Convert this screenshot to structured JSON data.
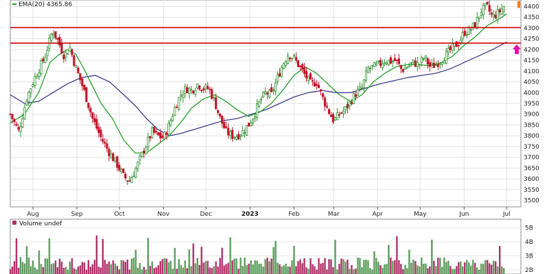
{
  "chart_data": [
    {
      "type": "candlestick",
      "legend": {
        "ema_label": "EMA(20)",
        "ema_value": "4365.86"
      },
      "y_ticks": [
        3500,
        3550,
        3600,
        3650,
        3700,
        3750,
        3800,
        3850,
        3900,
        3950,
        4000,
        4050,
        4100,
        4150,
        4200,
        4250,
        4300,
        4350,
        4400
      ],
      "ylim": [
        3470,
        4430
      ],
      "x_months": [
        {
          "label": "Aug",
          "day": 16
        },
        {
          "label": "Sep",
          "day": 47
        },
        {
          "label": "Oct",
          "day": 77
        },
        {
          "label": "Nov",
          "day": 108
        },
        {
          "label": "Dec",
          "day": 138
        },
        {
          "label": "2023",
          "day": 169,
          "bold": true
        },
        {
          "label": "Feb",
          "day": 200
        },
        {
          "label": "Mar",
          "day": 228
        },
        {
          "label": "Apr",
          "day": 259
        },
        {
          "label": "May",
          "day": 289
        },
        {
          "label": "Jun",
          "day": 320
        },
        {
          "label": "Jul",
          "day": 350
        }
      ],
      "series": [
        {
          "kind": "close",
          "points": [
            [
              0,
              3900
            ],
            [
              6,
              3820
            ],
            [
              12,
              3985
            ],
            [
              18,
              4080
            ],
            [
              24,
              4160
            ],
            [
              30,
              4290
            ],
            [
              34,
              4235
            ],
            [
              38,
              4170
            ],
            [
              42,
              4210
            ],
            [
              46,
              4120
            ],
            [
              52,
              4010
            ],
            [
              58,
              3880
            ],
            [
              64,
              3790
            ],
            [
              70,
              3720
            ],
            [
              76,
              3660
            ],
            [
              80,
              3610
            ],
            [
              84,
              3590
            ],
            [
              88,
              3640
            ],
            [
              92,
              3700
            ],
            [
              96,
              3760
            ],
            [
              100,
              3820
            ],
            [
              104,
              3800
            ],
            [
              108,
              3790
            ],
            [
              112,
              3850
            ],
            [
              116,
              3930
            ],
            [
              120,
              3990
            ],
            [
              124,
              4020
            ],
            [
              128,
              4010
            ],
            [
              132,
              4040
            ],
            [
              136,
              4020
            ],
            [
              140,
              4020
            ],
            [
              144,
              3960
            ],
            [
              148,
              3880
            ],
            [
              152,
              3820
            ],
            [
              156,
              3800
            ],
            [
              160,
              3800
            ],
            [
              164,
              3820
            ],
            [
              168,
              3850
            ],
            [
              172,
              3900
            ],
            [
              176,
              3960
            ],
            [
              180,
              4000
            ],
            [
              184,
              3990
            ],
            [
              188,
              4060
            ],
            [
              192,
              4130
            ],
            [
              196,
              4180
            ],
            [
              200,
              4160
            ],
            [
              204,
              4120
            ],
            [
              208,
              4080
            ],
            [
              212,
              4040
            ],
            [
              216,
              4050
            ],
            [
              220,
              3980
            ],
            [
              224,
              3920
            ],
            [
              228,
              3870
            ],
            [
              232,
              3900
            ],
            [
              236,
              3920
            ],
            [
              240,
              3960
            ],
            [
              244,
              4000
            ],
            [
              248,
              4020
            ],
            [
              252,
              4110
            ],
            [
              256,
              4120
            ],
            [
              260,
              4130
            ],
            [
              264,
              4150
            ],
            [
              268,
              4145
            ],
            [
              272,
              4150
            ],
            [
              276,
              4105
            ],
            [
              280,
              4120
            ],
            [
              284,
              4140
            ],
            [
              288,
              4130
            ],
            [
              292,
              4165
            ],
            [
              296,
              4120
            ],
            [
              300,
              4130
            ],
            [
              304,
              4155
            ],
            [
              308,
              4180
            ],
            [
              312,
              4210
            ],
            [
              316,
              4230
            ],
            [
              320,
              4280
            ],
            [
              324,
              4290
            ],
            [
              328,
              4320
            ],
            [
              332,
              4380
            ],
            [
              336,
              4400
            ],
            [
              340,
              4350
            ],
            [
              344,
              4370
            ],
            [
              348,
              4400
            ]
          ]
        },
        {
          "kind": "ema20",
          "name": "EMA(20)",
          "color": "#22a022",
          "points": [
            [
              0,
              3860
            ],
            [
              10,
              3900
            ],
            [
              20,
              4000
            ],
            [
              28,
              4140
            ],
            [
              34,
              4175
            ],
            [
              40,
              4200
            ],
            [
              46,
              4180
            ],
            [
              52,
              4110
            ],
            [
              58,
              4030
            ],
            [
              64,
              3950
            ],
            [
              72,
              3880
            ],
            [
              80,
              3780
            ],
            [
              88,
              3720
            ],
            [
              96,
              3720
            ],
            [
              104,
              3760
            ],
            [
              112,
              3800
            ],
            [
              120,
              3860
            ],
            [
              128,
              3930
            ],
            [
              136,
              3970
            ],
            [
              144,
              3990
            ],
            [
              152,
              3960
            ],
            [
              160,
              3920
            ],
            [
              168,
              3890
            ],
            [
              176,
              3910
            ],
            [
              184,
              3950
            ],
            [
              192,
              4010
            ],
            [
              200,
              4080
            ],
            [
              208,
              4120
            ],
            [
              216,
              4090
            ],
            [
              224,
              4040
            ],
            [
              232,
              3990
            ],
            [
              240,
              3960
            ],
            [
              248,
              3990
            ],
            [
              256,
              4050
            ],
            [
              264,
              4090
            ],
            [
              272,
              4120
            ],
            [
              280,
              4130
            ],
            [
              288,
              4130
            ],
            [
              296,
              4125
            ],
            [
              304,
              4140
            ],
            [
              312,
              4170
            ],
            [
              320,
              4220
            ],
            [
              328,
              4260
            ],
            [
              336,
              4310
            ],
            [
              344,
              4340
            ],
            [
              350,
              4365
            ]
          ]
        },
        {
          "kind": "ema50",
          "color": "#3b3b8f",
          "points": [
            [
              0,
              3990
            ],
            [
              10,
              3950
            ],
            [
              20,
              3960
            ],
            [
              30,
              4000
            ],
            [
              40,
              4040
            ],
            [
              50,
              4070
            ],
            [
              60,
              4080
            ],
            [
              70,
              4050
            ],
            [
              80,
              3990
            ],
            [
              88,
              3940
            ],
            [
              96,
              3880
            ],
            [
              104,
              3830
            ],
            [
              112,
              3800
            ],
            [
              120,
              3810
            ],
            [
              130,
              3830
            ],
            [
              140,
              3850
            ],
            [
              150,
              3870
            ],
            [
              160,
              3880
            ],
            [
              170,
              3900
            ],
            [
              180,
              3920
            ],
            [
              190,
              3950
            ],
            [
              200,
              3980
            ],
            [
              210,
              4000
            ],
            [
              220,
              4010
            ],
            [
              230,
              4000
            ],
            [
              240,
              4000
            ],
            [
              250,
              4020
            ],
            [
              260,
              4040
            ],
            [
              270,
              4055
            ],
            [
              280,
              4070
            ],
            [
              290,
              4080
            ],
            [
              300,
              4090
            ],
            [
              310,
              4110
            ],
            [
              320,
              4140
            ],
            [
              330,
              4170
            ],
            [
              340,
              4200
            ],
            [
              350,
              4235
            ]
          ]
        }
      ],
      "resistance_lines": [
        4302,
        4230
      ],
      "volume": {
        "label": "Volume undef",
        "ticks": [
          {
            "label": "2B",
            "value": 2
          },
          {
            "label": "3B",
            "value": 3
          },
          {
            "label": "4B",
            "value": 4
          },
          {
            "label": "5B",
            "value": 5
          }
        ],
        "ylim": [
          1.7,
          5.6
        ]
      }
    }
  ],
  "colors": {
    "up": "#2f8f2f",
    "down": "#c0182b",
    "ema20": "#22a022",
    "ema50": "#3b3b8f",
    "resistance": "#cc0000",
    "vol_up": "#5c9c5c",
    "vol_down": "#b0306a",
    "arrow": "#e60fa8",
    "last_bar": "#ff7a00"
  }
}
